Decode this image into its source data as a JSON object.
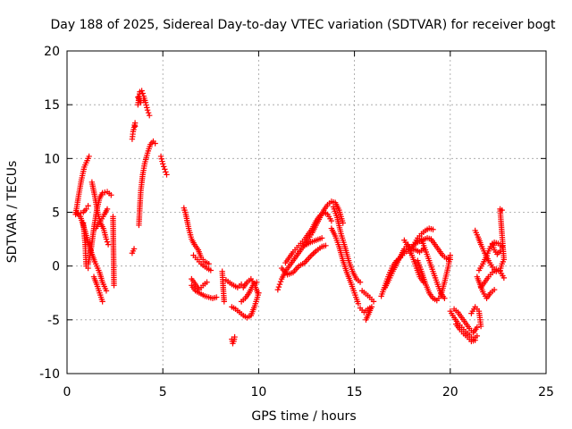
{
  "chart_data": {
    "type": "scatter",
    "title": "Day 188 of 2025, Sidereal Day-to-day VTEC variation (SDTVAR) for receiver bogt",
    "xlabel": "GPS time / hours",
    "ylabel": "SDTVAR / TECUs",
    "xlim": [
      0,
      25
    ],
    "ylim": [
      -10,
      20
    ],
    "xticks": [
      0,
      5,
      10,
      15,
      20,
      25
    ],
    "yticks": [
      -10,
      -5,
      0,
      5,
      10,
      15,
      20
    ],
    "grid": true,
    "marker": "+",
    "color": "#ff0000",
    "tracks": [
      [
        [
          0.45,
          4.8
        ],
        [
          0.6,
          6.5
        ],
        [
          0.75,
          8.0
        ],
        [
          0.9,
          9.2
        ],
        [
          1.05,
          9.8
        ],
        [
          1.15,
          10.2
        ]
      ],
      [
        [
          0.45,
          5.0
        ],
        [
          0.7,
          4.6
        ],
        [
          0.95,
          3.2
        ],
        [
          1.2,
          1.6
        ],
        [
          1.45,
          0.4
        ],
        [
          1.7,
          -0.6
        ],
        [
          1.85,
          -1.5
        ],
        [
          2.05,
          -2.3
        ]
      ],
      [
        [
          0.85,
          4.0
        ],
        [
          0.95,
          2.0
        ],
        [
          1.0,
          0.0
        ],
        [
          1.1,
          -0.2
        ]
      ],
      [
        [
          0.6,
          4.9
        ],
        [
          0.85,
          5.0
        ],
        [
          1.0,
          5.3
        ],
        [
          1.1,
          5.6
        ]
      ],
      [
        [
          1.1,
          0.2
        ],
        [
          1.25,
          1.5
        ],
        [
          1.4,
          3.5
        ],
        [
          1.55,
          5.2
        ],
        [
          1.7,
          6.3
        ],
        [
          1.85,
          6.8
        ],
        [
          2.1,
          6.9
        ],
        [
          2.3,
          6.6
        ]
      ],
      [
        [
          1.3,
          7.8
        ],
        [
          1.45,
          6.5
        ],
        [
          1.6,
          5.0
        ],
        [
          1.75,
          4.0
        ],
        [
          1.9,
          3.5
        ],
        [
          2.05,
          2.5
        ],
        [
          2.15,
          2.0
        ]
      ],
      [
        [
          1.5,
          3.5
        ],
        [
          1.75,
          4.2
        ],
        [
          1.95,
          4.8
        ],
        [
          2.1,
          5.3
        ]
      ],
      [
        [
          1.4,
          -1.0
        ],
        [
          1.55,
          -1.7
        ],
        [
          1.7,
          -2.5
        ],
        [
          1.85,
          -3.3
        ]
      ],
      [
        [
          2.4,
          4.6
        ],
        [
          2.45,
          -1.8
        ]
      ],
      [
        [
          3.4,
          11.8
        ],
        [
          3.45,
          12.5
        ],
        [
          3.55,
          13.3
        ],
        [
          3.55,
          13.0
        ]
      ],
      [
        [
          3.4,
          1.2
        ],
        [
          3.5,
          1.6
        ]
      ],
      [
        [
          3.7,
          15.0
        ],
        [
          3.8,
          16.2
        ],
        [
          3.9,
          16.3
        ],
        [
          4.0,
          15.8
        ],
        [
          4.1,
          15.2
        ],
        [
          4.2,
          14.5
        ],
        [
          4.3,
          14.0
        ]
      ],
      [
        [
          3.7,
          15.7
        ],
        [
          3.85,
          15.2
        ],
        [
          4.0,
          15.4
        ]
      ],
      [
        [
          3.75,
          3.8
        ],
        [
          3.8,
          5.5
        ],
        [
          3.85,
          7.0
        ],
        [
          3.95,
          8.5
        ],
        [
          4.05,
          9.5
        ],
        [
          4.2,
          10.5
        ],
        [
          4.35,
          11.3
        ],
        [
          4.5,
          11.6
        ],
        [
          4.6,
          11.4
        ]
      ],
      [
        [
          4.9,
          10.2
        ],
        [
          5.0,
          9.5
        ],
        [
          5.1,
          9.0
        ],
        [
          5.2,
          8.5
        ]
      ],
      [
        [
          6.1,
          5.4
        ],
        [
          6.2,
          4.8
        ],
        [
          6.35,
          3.5
        ],
        [
          6.5,
          2.5
        ],
        [
          6.65,
          2.0
        ],
        [
          6.85,
          1.5
        ],
        [
          7.0,
          0.8
        ],
        [
          7.2,
          0.4
        ],
        [
          7.4,
          0.2
        ]
      ],
      [
        [
          6.6,
          1.0
        ],
        [
          6.8,
          0.6
        ],
        [
          7.0,
          0.2
        ],
        [
          7.3,
          -0.2
        ],
        [
          7.5,
          -0.4
        ]
      ],
      [
        [
          6.5,
          -1.8
        ],
        [
          6.7,
          -2.3
        ],
        [
          7.0,
          -2.6
        ],
        [
          7.2,
          -2.8
        ],
        [
          7.4,
          -2.9
        ],
        [
          7.6,
          -3.0
        ],
        [
          7.8,
          -2.9
        ]
      ],
      [
        [
          6.5,
          -1.2
        ],
        [
          6.7,
          -1.7
        ],
        [
          6.9,
          -2.2
        ],
        [
          7.1,
          -1.8
        ],
        [
          7.3,
          -1.5
        ]
      ],
      [
        [
          8.1,
          -0.5
        ],
        [
          8.15,
          -2.0
        ],
        [
          8.2,
          -3.3
        ]
      ],
      [
        [
          8.6,
          -6.8
        ],
        [
          8.65,
          -7.2
        ],
        [
          8.7,
          -7.0
        ],
        [
          8.75,
          -6.6
        ]
      ],
      [
        [
          8.3,
          -1.3
        ],
        [
          8.6,
          -1.7
        ],
        [
          8.9,
          -2.0
        ],
        [
          9.1,
          -1.7
        ]
      ],
      [
        [
          8.6,
          -3.8
        ],
        [
          8.8,
          -4.0
        ],
        [
          9.0,
          -4.3
        ],
        [
          9.2,
          -4.6
        ],
        [
          9.4,
          -4.8
        ],
        [
          9.6,
          -4.6
        ],
        [
          9.8,
          -3.7
        ],
        [
          10.0,
          -2.5
        ]
      ],
      [
        [
          9.2,
          -2.0
        ],
        [
          9.4,
          -1.5
        ],
        [
          9.6,
          -1.2
        ],
        [
          9.8,
          -1.8
        ],
        [
          9.95,
          -2.5
        ]
      ],
      [
        [
          9.1,
          -3.3
        ],
        [
          9.3,
          -3.0
        ],
        [
          9.5,
          -2.5
        ],
        [
          9.7,
          -1.8
        ],
        [
          9.9,
          -1.5
        ]
      ],
      [
        [
          11.0,
          -2.2
        ],
        [
          11.1,
          -1.7
        ],
        [
          11.2,
          -1.2
        ],
        [
          11.4,
          -0.5
        ],
        [
          11.6,
          0.0
        ],
        [
          11.8,
          0.5
        ],
        [
          12.0,
          1.0
        ],
        [
          12.2,
          1.5
        ],
        [
          12.4,
          2.0
        ],
        [
          12.6,
          2.5
        ],
        [
          12.8,
          3.1
        ],
        [
          13.0,
          3.8
        ],
        [
          13.2,
          4.5
        ],
        [
          13.4,
          5.2
        ],
        [
          13.6,
          5.7
        ],
        [
          13.8,
          6.0
        ],
        [
          14.0,
          5.9
        ],
        [
          14.2,
          5.2
        ],
        [
          14.4,
          4.0
        ]
      ],
      [
        [
          11.4,
          0.3
        ],
        [
          11.6,
          0.8
        ],
        [
          11.8,
          1.3
        ],
        [
          12.0,
          1.7
        ],
        [
          12.2,
          2.1
        ],
        [
          12.4,
          2.5
        ],
        [
          12.6,
          3.0
        ],
        [
          12.8,
          3.5
        ],
        [
          13.0,
          4.2
        ],
        [
          13.2,
          4.7
        ],
        [
          13.4,
          5.0
        ],
        [
          13.6,
          4.8
        ],
        [
          13.8,
          4.2
        ]
      ],
      [
        [
          11.2,
          -0.2
        ],
        [
          11.5,
          -0.8
        ],
        [
          11.8,
          -0.6
        ],
        [
          12.1,
          0.0
        ],
        [
          12.4,
          0.3
        ],
        [
          12.7,
          0.9
        ],
        [
          13.0,
          1.4
        ],
        [
          13.3,
          1.8
        ],
        [
          13.5,
          1.9
        ]
      ],
      [
        [
          12.4,
          1.9
        ],
        [
          12.7,
          2.2
        ],
        [
          13.0,
          2.4
        ],
        [
          13.3,
          2.6
        ]
      ],
      [
        [
          13.8,
          3.5
        ],
        [
          14.0,
          2.8
        ],
        [
          14.2,
          1.8
        ],
        [
          14.4,
          0.5
        ],
        [
          14.6,
          -0.6
        ],
        [
          14.8,
          -1.5
        ],
        [
          15.0,
          -2.5
        ],
        [
          15.2,
          -3.5
        ]
      ],
      [
        [
          13.9,
          5.5
        ],
        [
          14.1,
          4.5
        ],
        [
          14.3,
          3.0
        ],
        [
          14.5,
          1.8
        ],
        [
          14.7,
          0.5
        ],
        [
          14.9,
          -0.5
        ],
        [
          15.1,
          -1.2
        ],
        [
          15.3,
          -1.5
        ]
      ],
      [
        [
          15.3,
          -3.9
        ],
        [
          15.5,
          -4.3
        ],
        [
          15.7,
          -4.0
        ],
        [
          15.9,
          -3.8
        ],
        [
          15.6,
          -5.0
        ]
      ],
      [
        [
          15.4,
          -2.3
        ],
        [
          15.6,
          -2.6
        ],
        [
          15.8,
          -2.9
        ],
        [
          16.0,
          -3.3
        ]
      ],
      [
        [
          16.4,
          -2.8
        ],
        [
          16.6,
          -1.8
        ],
        [
          16.8,
          -0.8
        ],
        [
          17.0,
          0.0
        ],
        [
          17.2,
          0.5
        ],
        [
          17.4,
          0.8
        ],
        [
          17.6,
          1.2
        ],
        [
          17.8,
          1.5
        ],
        [
          18.0,
          1.8
        ],
        [
          18.2,
          2.1
        ],
        [
          18.5,
          2.4
        ],
        [
          18.8,
          2.6
        ],
        [
          19.0,
          2.5
        ]
      ],
      [
        [
          16.6,
          -2.0
        ],
        [
          16.8,
          -1.3
        ],
        [
          17.0,
          -0.5
        ],
        [
          17.2,
          0.2
        ],
        [
          17.4,
          0.9
        ],
        [
          17.6,
          1.6
        ],
        [
          17.8,
          2.0
        ],
        [
          18.0,
          1.0
        ],
        [
          18.2,
          0.0
        ],
        [
          18.4,
          -1.0
        ],
        [
          18.6,
          -1.5
        ]
      ],
      [
        [
          17.6,
          2.4
        ],
        [
          17.8,
          1.8
        ],
        [
          18.0,
          1.6
        ],
        [
          18.2,
          1.5
        ],
        [
          18.4,
          1.3
        ],
        [
          18.6,
          1.6
        ]
      ],
      [
        [
          17.9,
          1.2
        ],
        [
          18.1,
          2.0
        ],
        [
          18.3,
          2.6
        ],
        [
          18.5,
          3.0
        ],
        [
          18.7,
          3.3
        ],
        [
          18.9,
          3.5
        ],
        [
          19.1,
          3.4
        ]
      ],
      [
        [
          18.3,
          0.5
        ],
        [
          18.5,
          -0.5
        ],
        [
          18.7,
          -1.6
        ],
        [
          18.9,
          -2.5
        ],
        [
          19.1,
          -3.0
        ],
        [
          19.3,
          -3.2
        ],
        [
          19.5,
          -2.8
        ],
        [
          19.7,
          -1.5
        ],
        [
          19.9,
          0.0
        ],
        [
          20.0,
          1.0
        ]
      ],
      [
        [
          18.5,
          2.5
        ],
        [
          18.7,
          1.5
        ],
        [
          18.9,
          0.5
        ],
        [
          19.1,
          -0.5
        ],
        [
          19.3,
          -1.5
        ],
        [
          19.5,
          -2.5
        ],
        [
          19.7,
          -3.0
        ]
      ],
      [
        [
          19.0,
          2.5
        ],
        [
          19.2,
          2.0
        ],
        [
          19.4,
          1.5
        ],
        [
          19.6,
          1.0
        ],
        [
          19.8,
          0.7
        ],
        [
          20.0,
          0.6
        ]
      ],
      [
        [
          20.0,
          -4.2
        ],
        [
          20.2,
          -4.8
        ],
        [
          20.4,
          -5.3
        ],
        [
          20.6,
          -5.7
        ],
        [
          20.8,
          -6.1
        ],
        [
          21.0,
          -6.4
        ],
        [
          21.2,
          -6.8
        ],
        [
          21.4,
          -6.5
        ]
      ],
      [
        [
          20.2,
          -4.0
        ],
        [
          20.4,
          -4.3
        ],
        [
          20.6,
          -4.8
        ],
        [
          20.8,
          -5.3
        ],
        [
          21.0,
          -5.8
        ],
        [
          21.2,
          -6.2
        ],
        [
          21.4,
          -5.7
        ]
      ],
      [
        [
          20.3,
          -5.4
        ],
        [
          20.5,
          -5.9
        ],
        [
          20.7,
          -6.3
        ],
        [
          20.9,
          -6.6
        ],
        [
          21.1,
          -7.0
        ],
        [
          21.3,
          -6.9
        ]
      ],
      [
        [
          21.1,
          -4.4
        ],
        [
          21.3,
          -3.8
        ],
        [
          21.5,
          -4.2
        ],
        [
          21.6,
          -5.6
        ]
      ],
      [
        [
          21.3,
          3.3
        ],
        [
          21.45,
          2.7
        ],
        [
          21.6,
          2.0
        ],
        [
          21.8,
          1.2
        ],
        [
          22.0,
          0.5
        ],
        [
          22.2,
          -0.1
        ],
        [
          22.4,
          -0.5
        ]
      ],
      [
        [
          21.5,
          -0.4
        ],
        [
          21.7,
          0.2
        ],
        [
          21.9,
          1.0
        ],
        [
          22.1,
          1.8
        ],
        [
          22.3,
          2.2
        ],
        [
          22.5,
          2.1
        ],
        [
          22.7,
          1.8
        ]
      ],
      [
        [
          21.6,
          -2.0
        ],
        [
          21.8,
          -1.5
        ],
        [
          22.0,
          -1.0
        ],
        [
          22.2,
          -0.6
        ],
        [
          22.4,
          -0.3
        ],
        [
          22.6,
          -0.5
        ],
        [
          22.8,
          -1.1
        ]
      ],
      [
        [
          21.4,
          -1.0
        ],
        [
          21.7,
          -2.4
        ],
        [
          21.9,
          -3.0
        ],
        [
          22.1,
          -2.5
        ],
        [
          22.3,
          -2.2
        ]
      ],
      [
        [
          22.6,
          -0.4
        ],
        [
          22.7,
          0.2
        ],
        [
          22.8,
          0.6
        ],
        [
          22.6,
          5.3
        ],
        [
          22.7,
          5.2
        ]
      ],
      [
        [
          22.2,
          2.1
        ],
        [
          22.3,
          1.5
        ],
        [
          22.45,
          1.1
        ],
        [
          22.6,
          1.4
        ]
      ]
    ]
  }
}
